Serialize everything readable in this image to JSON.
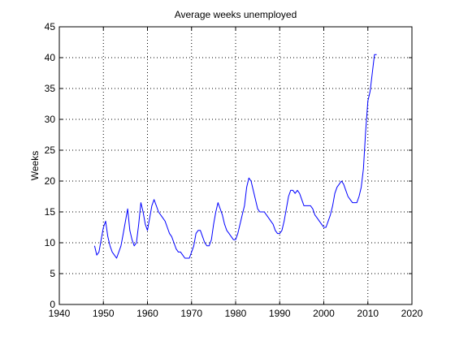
{
  "chart_data": {
    "type": "line",
    "title": "Average weeks unemployed",
    "xlabel": "",
    "ylabel": "Weeks",
    "xlim": [
      1940,
      2020
    ],
    "ylim": [
      0,
      45
    ],
    "xticks": [
      1940,
      1950,
      1960,
      1970,
      1980,
      1990,
      2000,
      2010,
      2020
    ],
    "yticks": [
      0,
      5,
      10,
      15,
      20,
      25,
      30,
      35,
      40,
      45
    ],
    "grid": true,
    "legend": "none",
    "series": [
      {
        "color": "#0000ff",
        "x": [
          1948.0,
          1948.5,
          1949.0,
          1949.5,
          1950.0,
          1950.5,
          1951.0,
          1951.5,
          1952.0,
          1952.5,
          1953.0,
          1953.5,
          1954.0,
          1954.5,
          1955.0,
          1955.5,
          1956.0,
          1956.5,
          1957.0,
          1957.5,
          1958.0,
          1958.5,
          1959.0,
          1959.5,
          1960.0,
          1960.5,
          1961.0,
          1961.5,
          1962.0,
          1962.5,
          1963.0,
          1963.5,
          1964.0,
          1964.5,
          1965.0,
          1965.5,
          1966.0,
          1966.5,
          1967.0,
          1967.5,
          1968.0,
          1968.5,
          1969.0,
          1969.5,
          1970.0,
          1970.5,
          1971.0,
          1971.5,
          1972.0,
          1972.5,
          1973.0,
          1973.5,
          1974.0,
          1974.5,
          1975.0,
          1975.5,
          1976.0,
          1976.5,
          1977.0,
          1977.5,
          1978.0,
          1978.5,
          1979.0,
          1979.5,
          1980.0,
          1980.5,
          1981.0,
          1981.5,
          1982.0,
          1982.5,
          1983.0,
          1983.5,
          1984.0,
          1984.5,
          1985.0,
          1985.5,
          1986.0,
          1986.5,
          1987.0,
          1987.5,
          1988.0,
          1988.5,
          1989.0,
          1989.5,
          1990.0,
          1990.5,
          1991.0,
          1991.5,
          1992.0,
          1992.5,
          1993.0,
          1993.5,
          1994.0,
          1994.5,
          1995.0,
          1995.5,
          1996.0,
          1996.5,
          1997.0,
          1997.5,
          1998.0,
          1998.5,
          1999.0,
          1999.5,
          2000.0,
          2000.5,
          2001.0,
          2001.5,
          2002.0,
          2002.5,
          2003.0,
          2003.5,
          2004.0,
          2004.5,
          2005.0,
          2005.5,
          2006.0,
          2006.5,
          2007.0,
          2007.5,
          2008.0,
          2008.5,
          2009.0,
          2009.5,
          2010.0,
          2010.5,
          2011.0,
          2011.5,
          2012.0
        ],
        "y": [
          9.5,
          8.0,
          8.5,
          10.5,
          12.5,
          13.5,
          11.0,
          9.5,
          8.5,
          8.0,
          7.5,
          8.5,
          9.5,
          11.5,
          13.5,
          15.5,
          12.0,
          10.5,
          9.5,
          10.0,
          13.0,
          16.5,
          15.0,
          13.0,
          12.0,
          14.0,
          16.0,
          17.0,
          16.0,
          15.0,
          14.5,
          14.0,
          13.5,
          12.5,
          11.5,
          11.0,
          10.0,
          9.0,
          8.5,
          8.5,
          8.0,
          7.5,
          7.5,
          7.5,
          8.5,
          9.5,
          11.5,
          12.0,
          12.0,
          11.0,
          10.0,
          9.5,
          9.5,
          10.5,
          13.0,
          15.0,
          16.5,
          15.5,
          14.5,
          13.0,
          12.0,
          11.5,
          11.0,
          10.5,
          10.5,
          11.5,
          13.0,
          14.5,
          16.0,
          19.0,
          20.5,
          20.0,
          18.5,
          17.0,
          15.5,
          15.0,
          15.0,
          15.0,
          14.5,
          14.0,
          13.5,
          13.0,
          12.0,
          11.5,
          11.5,
          12.0,
          13.5,
          15.5,
          17.5,
          18.5,
          18.5,
          18.0,
          18.5,
          18.0,
          17.0,
          16.0,
          16.0,
          16.0,
          16.0,
          15.5,
          14.5,
          14.0,
          13.5,
          13.0,
          12.5,
          12.5,
          13.5,
          14.5,
          16.0,
          18.0,
          19.0,
          19.5,
          20.0,
          19.5,
          18.5,
          17.5,
          17.0,
          16.5,
          16.5,
          16.5,
          17.5,
          19.0,
          22.0,
          28.0,
          33.0,
          34.5,
          37.5,
          40.5,
          40.5
        ]
      }
    ]
  }
}
